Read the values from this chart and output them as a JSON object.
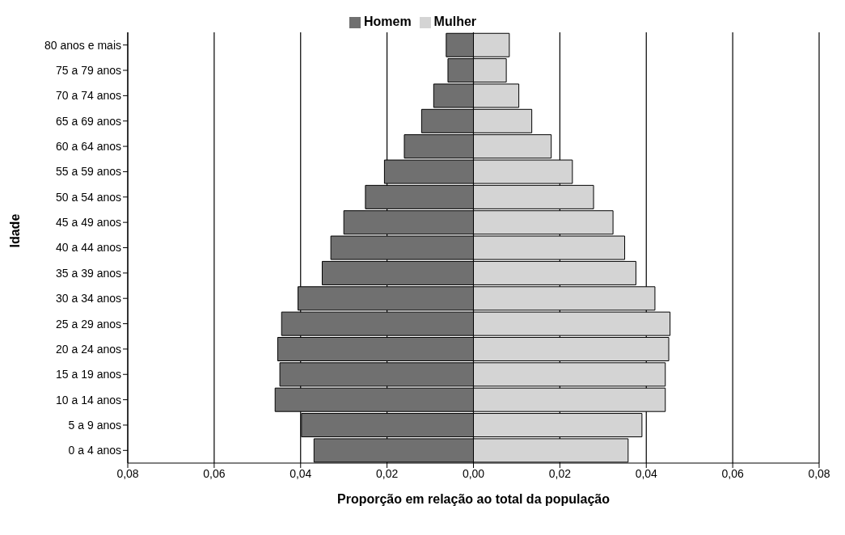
{
  "chart_data": {
    "type": "bar",
    "orientation": "horizontal",
    "stacked": true,
    "xlabel": "Proporção em relação ao total da população",
    "ylabel": "Idade",
    "categories": [
      "80 anos e mais",
      "75 a 79 anos",
      "70 a 74 anos",
      "65 a 69 anos",
      "60 a 64 anos",
      "55 a 59 anos",
      "50 a 54 anos",
      "45 a 49 anos",
      "40 a 44 anos",
      "35 a 39 anos",
      "30 a 34 anos",
      "25 a 29 anos",
      "20 a 24 anos",
      "15 a 19 anos",
      "10 a 14 anos",
      "5 a 9 anos",
      "0 a 4 anos"
    ],
    "series": [
      {
        "name": "Mulher",
        "color": "#d4d4d4",
        "values": [
          0.0083,
          0.0076,
          0.0105,
          0.0135,
          0.018,
          0.0229,
          0.0278,
          0.0323,
          0.035,
          0.0376,
          0.042,
          0.0455,
          0.0452,
          0.0444,
          0.0444,
          0.039,
          0.0358
        ]
      },
      {
        "name": "Homem",
        "color": "#707070",
        "values": [
          -0.0063,
          -0.0059,
          -0.0092,
          -0.012,
          -0.016,
          -0.0206,
          -0.025,
          -0.03,
          -0.033,
          -0.035,
          -0.0406,
          -0.0444,
          -0.0453,
          -0.0448,
          -0.0459,
          -0.0398,
          -0.0369
        ]
      }
    ],
    "xlim": [
      -0.08,
      0.08
    ],
    "xticks": [
      {
        "value": -0.08,
        "label": "0,08"
      },
      {
        "value": -0.06,
        "label": "0,06"
      },
      {
        "value": -0.04,
        "label": "0,04"
      },
      {
        "value": -0.02,
        "label": "0,02"
      },
      {
        "value": 0,
        "label": "0,00"
      },
      {
        "value": 0.02,
        "label": "0,02"
      },
      {
        "value": 0.04,
        "label": "0,04"
      },
      {
        "value": 0.06,
        "label": "0,06"
      },
      {
        "value": 0.08,
        "label": "0,08"
      }
    ],
    "grid": "x",
    "legend": "top"
  }
}
